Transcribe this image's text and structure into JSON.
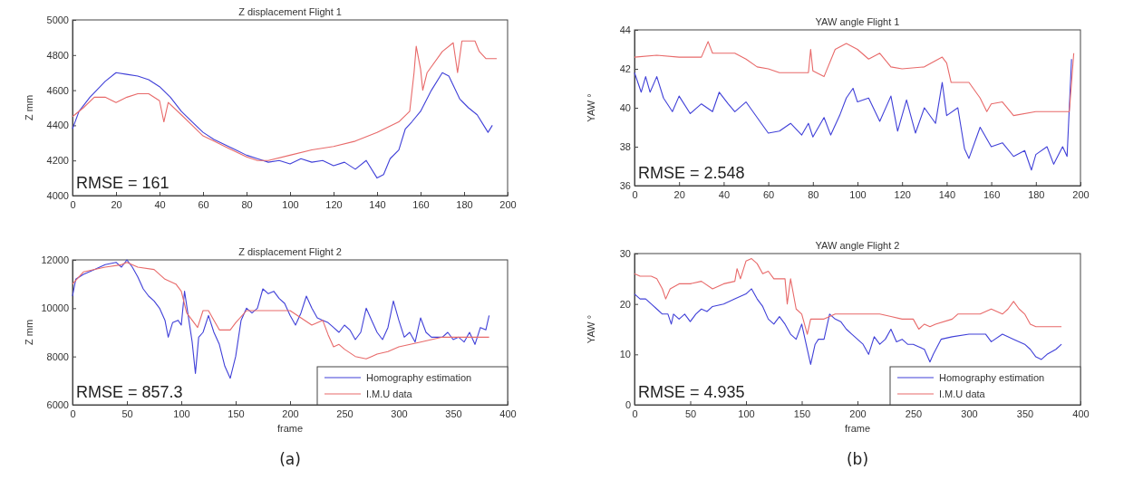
{
  "chart_data": [
    {
      "type": "line",
      "title": "Z displacement Flight 1",
      "ylabel": "Z mm",
      "xlim": [
        0,
        200
      ],
      "xticks": [
        0,
        20,
        40,
        60,
        80,
        100,
        120,
        140,
        160,
        180,
        200
      ],
      "ylim": [
        4000,
        5000
      ],
      "yticks": [
        4000,
        4200,
        4400,
        4600,
        4800,
        5000
      ],
      "grid": false,
      "marker": "none",
      "line_style": "solid",
      "annotations": [
        "RMSE = 161"
      ],
      "series": [
        {
          "color": "#4040d8",
          "x": [
            0,
            3,
            8,
            15,
            20,
            25,
            30,
            35,
            40,
            45,
            50,
            55,
            60,
            65,
            70,
            75,
            80,
            85,
            90,
            95,
            100,
            105,
            110,
            115,
            120,
            125,
            130,
            135,
            140,
            143,
            146,
            150,
            153,
            156,
            160,
            165,
            170,
            173,
            178,
            182,
            186,
            189,
            191,
            193
          ],
          "values": [
            4380,
            4480,
            4560,
            4650,
            4700,
            4690,
            4680,
            4660,
            4620,
            4560,
            4480,
            4420,
            4360,
            4320,
            4290,
            4260,
            4230,
            4210,
            4190,
            4200,
            4180,
            4210,
            4190,
            4200,
            4170,
            4190,
            4150,
            4200,
            4100,
            4120,
            4210,
            4260,
            4380,
            4420,
            4480,
            4600,
            4700,
            4680,
            4550,
            4500,
            4460,
            4400,
            4360,
            4400
          ]
        },
        {
          "color": "#e86a6a",
          "x": [
            0,
            5,
            10,
            15,
            20,
            25,
            30,
            35,
            40,
            42,
            44,
            50,
            55,
            60,
            65,
            70,
            80,
            85,
            90,
            100,
            110,
            120,
            130,
            140,
            150,
            155,
            157,
            158,
            160,
            161,
            163,
            170,
            175,
            177,
            179,
            185,
            187,
            190,
            195
          ],
          "values": [
            4450,
            4500,
            4560,
            4560,
            4530,
            4560,
            4580,
            4580,
            4540,
            4420,
            4530,
            4460,
            4400,
            4340,
            4310,
            4280,
            4220,
            4200,
            4200,
            4230,
            4260,
            4280,
            4310,
            4360,
            4420,
            4480,
            4700,
            4850,
            4720,
            4600,
            4700,
            4820,
            4870,
            4700,
            4880,
            4880,
            4820,
            4780,
            4780
          ]
        }
      ]
    },
    {
      "type": "line",
      "title": "Z displacement Flight 2",
      "xlabel": "frame",
      "ylabel": "Z mm",
      "xlim": [
        0,
        400
      ],
      "xticks": [
        0,
        50,
        100,
        150,
        200,
        250,
        300,
        350,
        400
      ],
      "ylim": [
        6000,
        12000
      ],
      "yticks": [
        6000,
        8000,
        10000,
        12000
      ],
      "grid": false,
      "marker": "none",
      "line_style": "solid",
      "legend": "bottom right",
      "annotations": [
        "RMSE = 857.3",
        "(a)"
      ],
      "series": [
        {
          "name": "Homography estimation",
          "color": "#4040d8",
          "x": [
            0,
            3,
            10,
            20,
            30,
            40,
            45,
            50,
            55,
            60,
            65,
            70,
            75,
            80,
            85,
            88,
            92,
            97,
            100,
            103,
            107,
            110,
            113,
            116,
            120,
            125,
            130,
            135,
            140,
            145,
            150,
            155,
            160,
            165,
            170,
            175,
            180,
            185,
            190,
            195,
            200,
            205,
            210,
            215,
            220,
            225,
            230,
            235,
            240,
            245,
            250,
            255,
            260,
            265,
            270,
            275,
            280,
            285,
            290,
            295,
            300,
            305,
            310,
            315,
            320,
            325,
            330,
            340,
            345,
            350,
            355,
            360,
            365,
            370,
            375,
            380,
            383
          ],
          "values": [
            10500,
            11200,
            11400,
            11600,
            11800,
            11900,
            11700,
            12000,
            11700,
            11300,
            10800,
            10500,
            10300,
            10000,
            9500,
            8800,
            9400,
            9500,
            9300,
            10700,
            9500,
            8600,
            7300,
            8800,
            9000,
            9700,
            9000,
            8500,
            7600,
            7100,
            8000,
            9500,
            10000,
            9800,
            10000,
            10800,
            10600,
            10700,
            10400,
            10200,
            9700,
            9300,
            9800,
            10500,
            10000,
            9600,
            9500,
            9400,
            9200,
            9000,
            9300,
            9100,
            8700,
            9000,
            10000,
            9500,
            9000,
            8700,
            9200,
            10300,
            9500,
            8800,
            9000,
            8600,
            9600,
            9000,
            8800,
            8800,
            9000,
            8700,
            8800,
            8600,
            9000,
            8500,
            9200,
            9100,
            9700
          ]
        },
        {
          "name": "I.M.U data",
          "color": "#e86a6a",
          "x": [
            0,
            10,
            30,
            45,
            50,
            60,
            75,
            85,
            95,
            100,
            105,
            110,
            115,
            120,
            125,
            130,
            135,
            145,
            150,
            160,
            200,
            210,
            220,
            230,
            235,
            240,
            245,
            250,
            260,
            270,
            275,
            280,
            290,
            300,
            320,
            340,
            360,
            383
          ],
          "values": [
            11000,
            11500,
            11700,
            11800,
            11900,
            11700,
            11600,
            11200,
            11000,
            10700,
            9800,
            9500,
            9200,
            9900,
            9900,
            9500,
            9100,
            9100,
            9400,
            9900,
            9900,
            9600,
            9300,
            9500,
            8900,
            8400,
            8500,
            8300,
            8000,
            7900,
            8000,
            8100,
            8200,
            8400,
            8600,
            8800,
            8800,
            8800
          ]
        }
      ]
    },
    {
      "type": "line",
      "title": "YAW angle Flight 1",
      "ylabel": "YAW °",
      "xlim": [
        0,
        200
      ],
      "xticks": [
        0,
        20,
        40,
        60,
        80,
        100,
        120,
        140,
        160,
        180,
        200
      ],
      "ylim": [
        36,
        44
      ],
      "yticks": [
        36,
        38,
        40,
        42,
        44
      ],
      "grid": false,
      "marker": "none",
      "line_style": "solid",
      "annotations": [
        "RMSE = 2.548"
      ],
      "series": [
        {
          "color": "#4040d8",
          "x": [
            0,
            3,
            5,
            7,
            10,
            13,
            17,
            20,
            25,
            30,
            35,
            38,
            42,
            45,
            50,
            55,
            60,
            65,
            70,
            75,
            78,
            80,
            85,
            88,
            92,
            95,
            98,
            100,
            105,
            110,
            115,
            118,
            122,
            126,
            130,
            135,
            138,
            140,
            145,
            148,
            150,
            155,
            160,
            165,
            170,
            175,
            178,
            180,
            185,
            188,
            192,
            194,
            196
          ],
          "values": [
            41.8,
            40.8,
            41.6,
            40.8,
            41.6,
            40.5,
            39.8,
            40.6,
            39.7,
            40.2,
            39.8,
            40.8,
            40.2,
            39.8,
            40.3,
            39.5,
            38.7,
            38.8,
            39.2,
            38.6,
            39.2,
            38.5,
            39.5,
            38.6,
            39.6,
            40.5,
            41.0,
            40.3,
            40.5,
            39.3,
            40.6,
            38.8,
            40.4,
            38.7,
            40.0,
            39.2,
            41.3,
            39.6,
            40.0,
            37.9,
            37.4,
            39.0,
            38.0,
            38.2,
            37.5,
            37.8,
            36.8,
            37.6,
            38.0,
            37.1,
            38.0,
            37.5,
            42.5
          ]
        },
        {
          "color": "#e86a6a",
          "x": [
            0,
            10,
            20,
            30,
            33,
            35,
            45,
            50,
            55,
            60,
            65,
            75,
            78,
            79,
            80,
            85,
            90,
            95,
            100,
            105,
            110,
            115,
            120,
            130,
            138,
            140,
            142,
            150,
            155,
            158,
            160,
            165,
            170,
            180,
            195,
            197
          ],
          "values": [
            42.6,
            42.7,
            42.6,
            42.6,
            43.4,
            42.8,
            42.8,
            42.5,
            42.1,
            42.0,
            41.8,
            41.8,
            41.8,
            43.0,
            41.9,
            41.6,
            43.0,
            43.3,
            43.0,
            42.5,
            42.8,
            42.1,
            42.0,
            42.1,
            42.6,
            42.3,
            41.3,
            41.3,
            40.5,
            39.8,
            40.2,
            40.3,
            39.6,
            39.8,
            39.8,
            42.8
          ]
        }
      ]
    },
    {
      "type": "line",
      "title": "YAW angle Flight 2",
      "xlabel": "frame",
      "ylabel": "YAW °",
      "xlim": [
        0,
        400
      ],
      "xticks": [
        0,
        50,
        100,
        150,
        200,
        250,
        300,
        350,
        400
      ],
      "ylim": [
        0,
        30
      ],
      "yticks": [
        0,
        10,
        20,
        30
      ],
      "grid": false,
      "marker": "none",
      "line_style": "solid",
      "legend": "bottom right",
      "annotations": [
        "RMSE = 4.935",
        "(b)"
      ],
      "series": [
        {
          "name": "Homography estimation",
          "color": "#4040d8",
          "x": [
            0,
            5,
            10,
            15,
            20,
            25,
            30,
            33,
            35,
            40,
            45,
            50,
            55,
            60,
            65,
            70,
            80,
            90,
            100,
            105,
            110,
            115,
            120,
            125,
            130,
            135,
            140,
            145,
            150,
            155,
            158,
            162,
            165,
            170,
            175,
            180,
            185,
            190,
            195,
            200,
            205,
            210,
            215,
            220,
            225,
            230,
            235,
            240,
            245,
            250,
            255,
            260,
            265,
            268,
            275,
            285,
            300,
            315,
            320,
            330,
            340,
            350,
            355,
            360,
            365,
            370,
            378,
            383
          ],
          "values": [
            22,
            21,
            21,
            20,
            19,
            18,
            18,
            16,
            18,
            17,
            18,
            16.5,
            18,
            19,
            18.5,
            19.5,
            20,
            21,
            22,
            23,
            21,
            19.5,
            17,
            16,
            17.5,
            16,
            14,
            13,
            16,
            11,
            8,
            12,
            13,
            13,
            18,
            17,
            16.5,
            15,
            14,
            13,
            12,
            10,
            13.5,
            12,
            13,
            15,
            12.5,
            13,
            12,
            12,
            11.5,
            11,
            8.5,
            10,
            13,
            13.5,
            14,
            14,
            12.5,
            14,
            13,
            12,
            11,
            9.5,
            9,
            10,
            11,
            12
          ]
        },
        {
          "name": "I.M.U data",
          "color": "#e86a6a",
          "x": [
            0,
            5,
            15,
            20,
            25,
            28,
            32,
            40,
            50,
            60,
            70,
            80,
            90,
            92,
            95,
            100,
            105,
            110,
            115,
            120,
            125,
            130,
            135,
            137,
            140,
            145,
            150,
            155,
            158,
            170,
            180,
            200,
            220,
            230,
            240,
            250,
            255,
            260,
            265,
            270,
            285,
            290,
            300,
            310,
            320,
            330,
            335,
            340,
            345,
            350,
            355,
            360,
            383
          ],
          "values": [
            26,
            25.5,
            25.5,
            25,
            23,
            21,
            23,
            24,
            24,
            24.5,
            23,
            24,
            24.5,
            27,
            25,
            28.5,
            29,
            28,
            26,
            26.5,
            25,
            25,
            25,
            20,
            25,
            19,
            18,
            14,
            17,
            17,
            18,
            18,
            18,
            17.5,
            17,
            17,
            15,
            16,
            15.5,
            16,
            17,
            18,
            18,
            18,
            19,
            18,
            19,
            20.5,
            19,
            18,
            16,
            15.5,
            15.5
          ]
        }
      ]
    }
  ]
}
